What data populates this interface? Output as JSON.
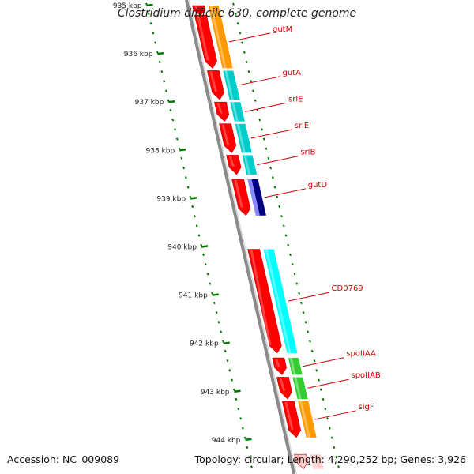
{
  "title": "Clostridium difficile 630, complete genome",
  "footer": {
    "accession": "Accession: NC_009089",
    "summary": "Topology: circular; Length: 4,290,252 bp; Genes: 3,926"
  },
  "colors": {
    "backbone": "#8a8a8a",
    "gene_arrow": "#ff0000",
    "tick": "#007700",
    "label": "#cc0000",
    "cog_orange": "#ff9900",
    "cog_cyan": "#00cccc",
    "cog_bright_cyan": "#00ffff",
    "cog_navy": "#000080",
    "cog_green": "#33cc33"
  },
  "scale_labels": [
    "935 kbp",
    "936 kbp",
    "937 kbp",
    "938 kbp",
    "939 kbp",
    "940 kbp",
    "941 kbp",
    "942 kbp",
    "943 kbp",
    "944 kbp"
  ],
  "genes": [
    {
      "name": "",
      "start_kbp": 935.0,
      "end_kbp": 935.2,
      "color": "#ff9900"
    },
    {
      "name": "gutM",
      "start_kbp": 935.2,
      "end_kbp": 936.3,
      "color": "#ff9900"
    },
    {
      "name": "gutA",
      "start_kbp": 936.35,
      "end_kbp": 936.95,
      "color": "#00cccc"
    },
    {
      "name": "srlE",
      "start_kbp": 937.0,
      "end_kbp": 937.4,
      "color": "#00cccc"
    },
    {
      "name": "srlE'",
      "start_kbp": 937.45,
      "end_kbp": 938.05,
      "color": "#00cccc"
    },
    {
      "name": "srlB",
      "start_kbp": 938.1,
      "end_kbp": 938.5,
      "color": "#00cccc"
    },
    {
      "name": "gutD",
      "start_kbp": 938.6,
      "end_kbp": 939.35,
      "color": "#000080"
    },
    {
      "name": "CD0769",
      "start_kbp": 940.05,
      "end_kbp": 942.2,
      "color": "#00ffff"
    },
    {
      "name": "spoIIAA",
      "start_kbp": 942.3,
      "end_kbp": 942.65,
      "color": "#33cc33"
    },
    {
      "name": "spoIIAB",
      "start_kbp": 942.7,
      "end_kbp": 943.15,
      "color": "#33cc33"
    },
    {
      "name": "sigF",
      "start_kbp": 943.2,
      "end_kbp": 943.95,
      "color": "#ff9900"
    },
    {
      "name": "",
      "start_kbp": 944.3,
      "end_kbp": 944.6,
      "color": "#ffcccc"
    }
  ]
}
